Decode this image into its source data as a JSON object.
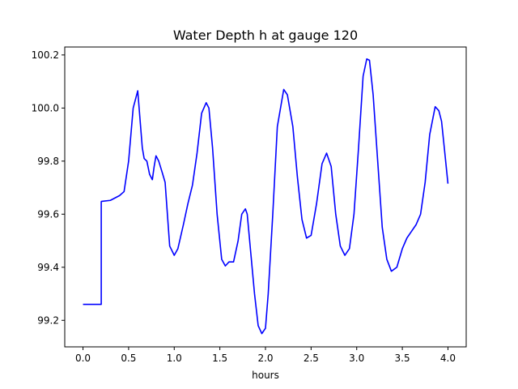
{
  "chart_data": {
    "type": "line",
    "title": "Water Depth h at gauge 120",
    "xlabel": "hours",
    "ylabel": "",
    "xlim": [
      -0.2,
      4.2
    ],
    "ylim": [
      99.1,
      100.23
    ],
    "xticks": [
      0.0,
      0.5,
      1.0,
      1.5,
      2.0,
      2.5,
      3.0,
      3.5,
      4.0
    ],
    "xtick_labels": [
      "0.0",
      "0.5",
      "1.0",
      "1.5",
      "2.0",
      "2.5",
      "3.0",
      "3.5",
      "4.0"
    ],
    "yticks": [
      99.2,
      99.4,
      99.6,
      99.8,
      100.0,
      100.2
    ],
    "ytick_labels": [
      "99.2",
      "99.4",
      "99.6",
      "99.8",
      "100.0",
      "100.2"
    ],
    "grid": false,
    "series": [
      {
        "color": "#0000ff",
        "x": [
          0.0,
          0.2,
          0.2,
          0.201,
          0.3,
          0.4,
          0.45,
          0.5,
          0.55,
          0.6,
          0.65,
          0.67,
          0.7,
          0.73,
          0.76,
          0.78,
          0.8,
          0.83,
          0.87,
          0.9,
          0.95,
          1.0,
          1.04,
          1.1,
          1.15,
          1.2,
          1.25,
          1.3,
          1.35,
          1.38,
          1.42,
          1.47,
          1.52,
          1.56,
          1.6,
          1.65,
          1.7,
          1.74,
          1.78,
          1.8,
          1.84,
          1.88,
          1.92,
          1.96,
          2.0,
          2.03,
          2.08,
          2.13,
          2.2,
          2.24,
          2.3,
          2.35,
          2.4,
          2.45,
          2.5,
          2.56,
          2.62,
          2.67,
          2.72,
          2.77,
          2.82,
          2.87,
          2.92,
          2.97,
          3.02,
          3.07,
          3.11,
          3.14,
          3.18,
          3.23,
          3.28,
          3.33,
          3.38,
          3.44,
          3.5,
          3.55,
          3.6,
          3.65,
          3.7,
          3.75,
          3.8,
          3.86,
          3.9,
          3.93,
          3.96,
          4.0
        ],
        "y": [
          99.26,
          99.26,
          99.645,
          99.648,
          99.652,
          99.67,
          99.685,
          99.8,
          100.0,
          100.065,
          99.85,
          99.81,
          99.8,
          99.75,
          99.73,
          99.78,
          99.82,
          99.8,
          99.755,
          99.72,
          99.48,
          99.445,
          99.47,
          99.56,
          99.64,
          99.71,
          99.83,
          99.98,
          100.02,
          100.0,
          99.85,
          99.6,
          99.43,
          99.405,
          99.42,
          99.42,
          99.5,
          99.6,
          99.62,
          99.6,
          99.45,
          99.3,
          99.18,
          99.15,
          99.17,
          99.3,
          99.6,
          99.93,
          100.07,
          100.05,
          99.93,
          99.74,
          99.58,
          99.51,
          99.52,
          99.64,
          99.79,
          99.83,
          99.78,
          99.6,
          99.48,
          99.445,
          99.47,
          99.6,
          99.85,
          100.12,
          100.185,
          100.18,
          100.05,
          99.8,
          99.55,
          99.43,
          99.385,
          99.4,
          99.47,
          99.51,
          99.535,
          99.56,
          99.6,
          99.72,
          99.9,
          100.005,
          99.99,
          99.95,
          99.85,
          99.715
        ]
      }
    ]
  }
}
